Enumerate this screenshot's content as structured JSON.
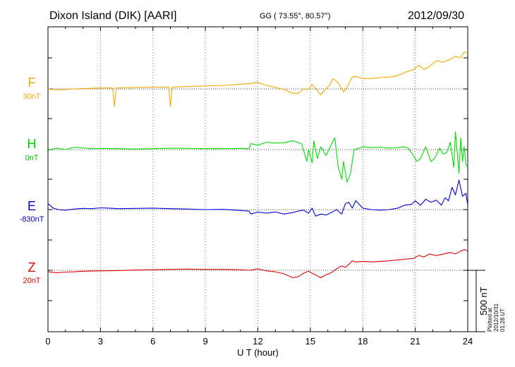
{
  "header": {
    "station": "Dixon Island (DIK)  [AARI]",
    "coords": "GG ( 73.55°,  80.57°)",
    "date": "2012/09/30"
  },
  "footer": {
    "plotted": "Plotted at 2012/10/31 01:28 UT"
  },
  "chart_data": {
    "type": "line",
    "title": "Dixon Island (DIK) [AARI]",
    "xlabel": "U T (hour)",
    "xlim": [
      0,
      24
    ],
    "xticks": [
      "0",
      "3",
      "6",
      "9",
      "12",
      "15",
      "18",
      "21",
      "24"
    ],
    "scale_label": "500 nT",
    "series": [
      {
        "name": "F",
        "baseline_label": "30nT",
        "color": "#f5a800",
        "x": [
          0,
          0.5,
          1,
          1.5,
          2,
          2.5,
          3,
          3.7,
          3.8,
          3.9,
          4.5,
          5,
          6,
          6.9,
          7,
          7.1,
          8,
          9,
          10,
          11,
          11.5,
          12,
          12.5,
          13,
          13.5,
          14,
          14.3,
          14.6,
          14.9,
          15.1,
          15.4,
          15.6,
          15.8,
          16.1,
          16.3,
          16.6,
          16.9,
          17.1,
          17.4,
          17.6,
          18,
          18.5,
          19,
          19.5,
          20,
          20.5,
          20.9,
          21.2,
          21.5,
          21.8,
          22.2,
          22.6,
          23,
          23.3,
          23.6,
          23.8,
          24
        ],
        "y": [
          0,
          -3,
          -2,
          0,
          1,
          2,
          3,
          3,
          -60,
          3,
          4,
          5,
          6,
          6,
          -60,
          6,
          8,
          10,
          12,
          16,
          18,
          22,
          12,
          5,
          -2,
          -15,
          -15,
          0,
          -2,
          15,
          -5,
          -20,
          -5,
          12,
          35,
          20,
          -10,
          5,
          40,
          42,
          35,
          35,
          38,
          40,
          45,
          58,
          65,
          80,
          65,
          75,
          95,
          90,
          100,
          110,
          105,
          125,
          120
        ]
      },
      {
        "name": "H",
        "baseline_label": "0nT",
        "color": "#00e000",
        "x": [
          0,
          0.5,
          1,
          1.5,
          2,
          2.5,
          3,
          4,
          5,
          6,
          7,
          8,
          9,
          10,
          11,
          11.5,
          11.6,
          12,
          12.5,
          13,
          13.5,
          14,
          14.5,
          14.8,
          14.9,
          15.1,
          15.2,
          15.4,
          15.6,
          15.9,
          16.1,
          16.4,
          16.6,
          16.8,
          16.9,
          17.1,
          17.3,
          17.5,
          17.8,
          18,
          18.5,
          19,
          19.5,
          20,
          20.3,
          20.6,
          20.9,
          21.1,
          21.3,
          21.6,
          21.9,
          22.1,
          22.4,
          22.6,
          22.8,
          23,
          23.2,
          23.3,
          23.5,
          23.6,
          23.7,
          23.8,
          23.9,
          24
        ],
        "y": [
          -2,
          5,
          0,
          8,
          6,
          3,
          4,
          3,
          2,
          3,
          5,
          4,
          3,
          3,
          4,
          3,
          20,
          15,
          25,
          22,
          23,
          30,
          20,
          -40,
          0,
          -45,
          30,
          -30,
          10,
          -20,
          5,
          40,
          -60,
          -100,
          -40,
          -110,
          -80,
          0,
          5,
          10,
          7,
          8,
          5,
          7,
          10,
          5,
          -20,
          -40,
          -30,
          10,
          -40,
          -30,
          5,
          -15,
          -10,
          25,
          -60,
          60,
          -80,
          40,
          -40,
          10,
          -50,
          -60
        ]
      },
      {
        "name": "E",
        "baseline_label": "-830nT",
        "color": "#0000e0",
        "x": [
          0,
          0.3,
          0.6,
          1,
          1.5,
          2,
          2.5,
          3,
          3.5,
          4,
          5,
          6,
          7,
          8,
          9,
          10,
          11,
          11.5,
          11.6,
          12,
          12.5,
          13,
          13.5,
          14,
          14.3,
          14.6,
          14.9,
          15.1,
          15.3,
          15.6,
          15.9,
          16.2,
          16.5,
          16.8,
          17,
          17.2,
          17.4,
          17.6,
          18,
          18.5,
          19,
          19.5,
          20,
          20.4,
          20.8,
          21,
          21.3,
          21.6,
          21.9,
          22.2,
          22.5,
          22.7,
          22.9,
          23.1,
          23.3,
          23.5,
          23.7,
          23.9,
          24
        ],
        "y": [
          20,
          5,
          0,
          -2,
          2,
          4,
          3,
          6,
          5,
          3,
          4,
          5,
          3,
          2,
          0,
          1,
          -3,
          -5,
          -15,
          -8,
          -12,
          -8,
          -15,
          -10,
          -5,
          -2,
          -12,
          5,
          -22,
          -15,
          -18,
          -10,
          0,
          -15,
          20,
          25,
          5,
          30,
          5,
          0,
          -2,
          0,
          5,
          15,
          18,
          30,
          15,
          35,
          25,
          32,
          15,
          40,
          30,
          75,
          50,
          100,
          45,
          55,
          15
        ]
      },
      {
        "name": "Z",
        "baseline_label": "20nT",
        "color": "#e00000",
        "x": [
          0,
          0.5,
          1,
          1.5,
          2,
          3,
          4,
          5,
          6,
          7,
          8,
          9,
          10,
          11,
          11.5,
          12,
          12.5,
          13,
          13.5,
          14,
          14.3,
          14.6,
          14.9,
          15.1,
          15.3,
          15.6,
          15.9,
          16.2,
          16.5,
          16.8,
          17,
          17.2,
          17.4,
          17.6,
          18,
          18.5,
          19,
          19.5,
          20,
          20.5,
          20.9,
          21.2,
          21.5,
          21.8,
          22.2,
          22.6,
          23,
          23.3,
          23.6,
          23.8,
          24
        ],
        "y": [
          -5,
          -8,
          -6,
          -5,
          -3,
          -2,
          -1,
          1,
          2,
          3,
          4,
          3,
          3,
          2,
          0,
          5,
          -2,
          -5,
          -12,
          -25,
          -22,
          -10,
          -3,
          -10,
          -15,
          -25,
          -15,
          -8,
          5,
          15,
          10,
          20,
          32,
          28,
          30,
          28,
          30,
          32,
          35,
          38,
          40,
          50,
          45,
          55,
          50,
          55,
          60,
          55,
          65,
          70,
          65
        ]
      }
    ]
  }
}
